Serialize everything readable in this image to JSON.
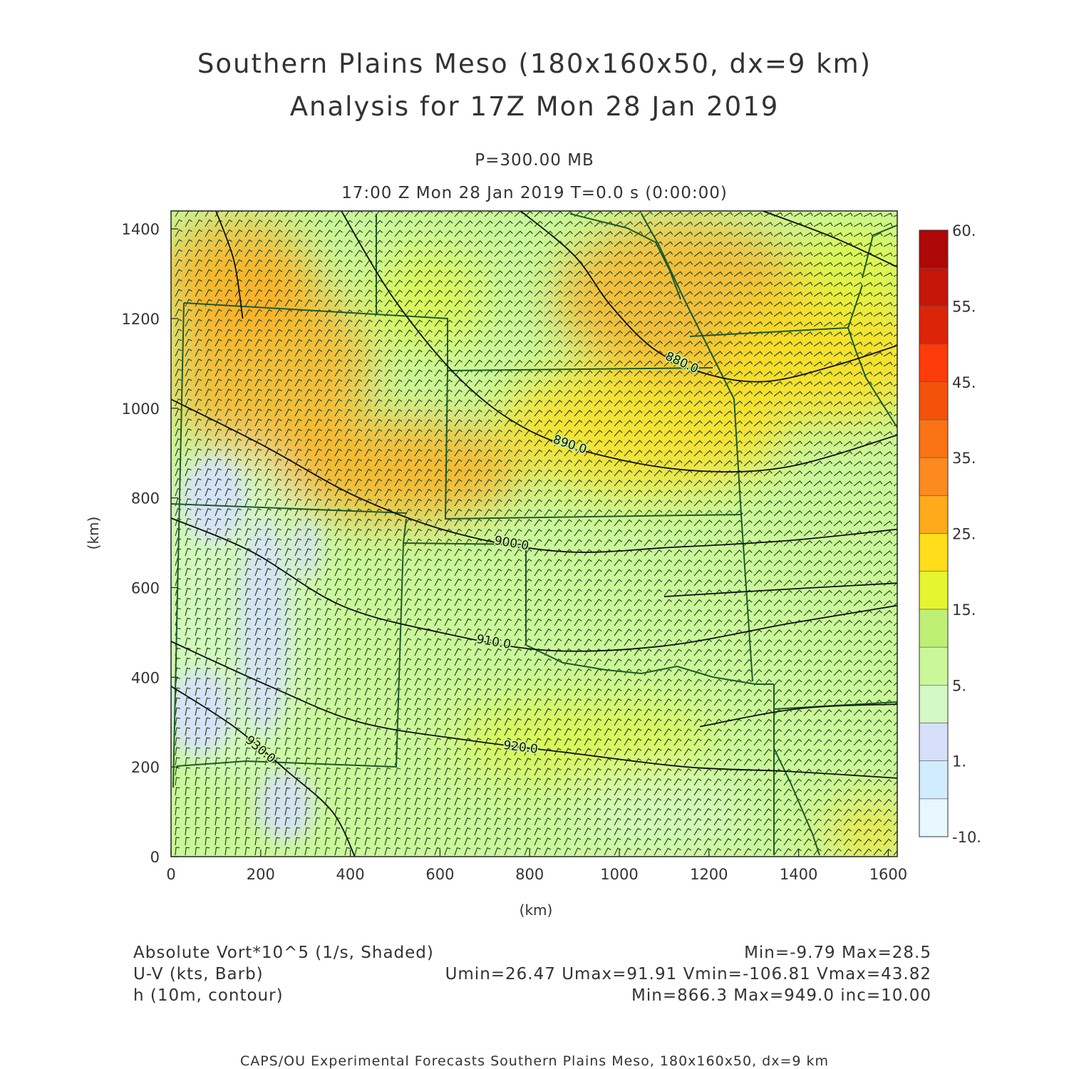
{
  "header": {
    "title_line1": "Southern Plains Meso (180x160x50, dx=9 km)",
    "title_line2": "Analysis for 17Z Mon 28 Jan 2019",
    "level": "P=300.00 MB",
    "time": "17:00 Z Mon 28 Jan 2019    T=0.0 s (0:00:00)"
  },
  "footer_fields": {
    "field1_name": "Absolute Vort*10^5 (1/s, Shaded)",
    "field1_stats": "Min=-9.79 Max=28.5",
    "field2_name": "U-V (kts, Barb)",
    "field2_stats": "Umin=26.47 Umax=91.91 Vmin=-106.81 Vmax=43.82",
    "field3_name": "h (10m, contour)",
    "field3_stats": "Min=866.3 Max=949.0 inc=10.00"
  },
  "credit": "CAPS/OU Experimental Forecasts  Southern Plains Meso, 180x160x50, dx=9 km",
  "chart_data": {
    "type": "heatmap",
    "xlabel": "(km)",
    "ylabel": "(km)",
    "xlim": [
      0,
      1620
    ],
    "ylim": [
      0,
      1440
    ],
    "x_ticks": [
      "0",
      "200",
      "400",
      "600",
      "800",
      "1000",
      "1200",
      "1400",
      "1600"
    ],
    "y_ticks": [
      "0",
      "200",
      "400",
      "600",
      "800",
      "1000",
      "1200",
      "1400"
    ],
    "colorbar": {
      "colors": [
        "#e8f7ff",
        "#d2ecff",
        "#d6e0fa",
        "#d4f8c4",
        "#cbf79b",
        "#bff075",
        "#e5f52f",
        "#fedd1a",
        "#fdab1b",
        "#fc8a1e",
        "#f97314",
        "#f4520b",
        "#fb3b0a",
        "#dc2508",
        "#c5150a",
        "#ad0707"
      ],
      "labels": [
        "-10.",
        "1.",
        "5.",
        "15.",
        "25.",
        "35.",
        "45.",
        "55.",
        "60."
      ]
    },
    "contours": [
      {
        "label": "880.0",
        "points": [
          [
            780,
            1440
          ],
          [
            900,
            1340
          ],
          [
            980,
            1230
          ],
          [
            1080,
            1130
          ],
          [
            1200,
            1075
          ],
          [
            1330,
            1060
          ],
          [
            1480,
            1095
          ],
          [
            1620,
            1140
          ]
        ]
      },
      {
        "label": "890.0",
        "points": [
          [
            380,
            1440
          ],
          [
            500,
            1240
          ],
          [
            650,
            1060
          ],
          [
            800,
            950
          ],
          [
            980,
            890
          ],
          [
            1180,
            860
          ],
          [
            1380,
            870
          ],
          [
            1620,
            940
          ]
        ]
      },
      {
        "label": "900.0",
        "points": [
          [
            0,
            1020
          ],
          [
            200,
            920
          ],
          [
            420,
            800
          ],
          [
            640,
            720
          ],
          [
            880,
            680
          ],
          [
            1120,
            690
          ],
          [
            1380,
            705
          ],
          [
            1620,
            730
          ]
        ]
      },
      {
        "label": "910.0",
        "points": [
          [
            0,
            755
          ],
          [
            180,
            680
          ],
          [
            380,
            560
          ],
          [
            600,
            500
          ],
          [
            840,
            460
          ],
          [
            1100,
            470
          ],
          [
            1380,
            520
          ],
          [
            1620,
            560
          ]
        ]
      },
      {
        "label": "920.0",
        "points": [
          [
            0,
            480
          ],
          [
            220,
            380
          ],
          [
            420,
            300
          ],
          [
            660,
            260
          ],
          [
            900,
            230
          ],
          [
            1150,
            200
          ],
          [
            1380,
            190
          ],
          [
            1620,
            175
          ]
        ]
      },
      {
        "label": "930.0",
        "points": [
          [
            0,
            380
          ],
          [
            140,
            290
          ],
          [
            260,
            190
          ],
          [
            360,
            100
          ],
          [
            410,
            0
          ]
        ]
      },
      {
        "label": "",
        "points": [
          [
            100,
            1440
          ],
          [
            140,
            1330
          ],
          [
            160,
            1200
          ]
        ]
      },
      {
        "label": "",
        "points": [
          [
            1320,
            1440
          ],
          [
            1480,
            1380
          ],
          [
            1620,
            1315
          ]
        ]
      },
      {
        "label": "",
        "points": [
          [
            1100,
            580
          ],
          [
            1350,
            595
          ],
          [
            1620,
            610
          ]
        ]
      },
      {
        "label": "",
        "points": [
          [
            1180,
            290
          ],
          [
            1400,
            330
          ],
          [
            1620,
            340
          ]
        ]
      }
    ]
  }
}
